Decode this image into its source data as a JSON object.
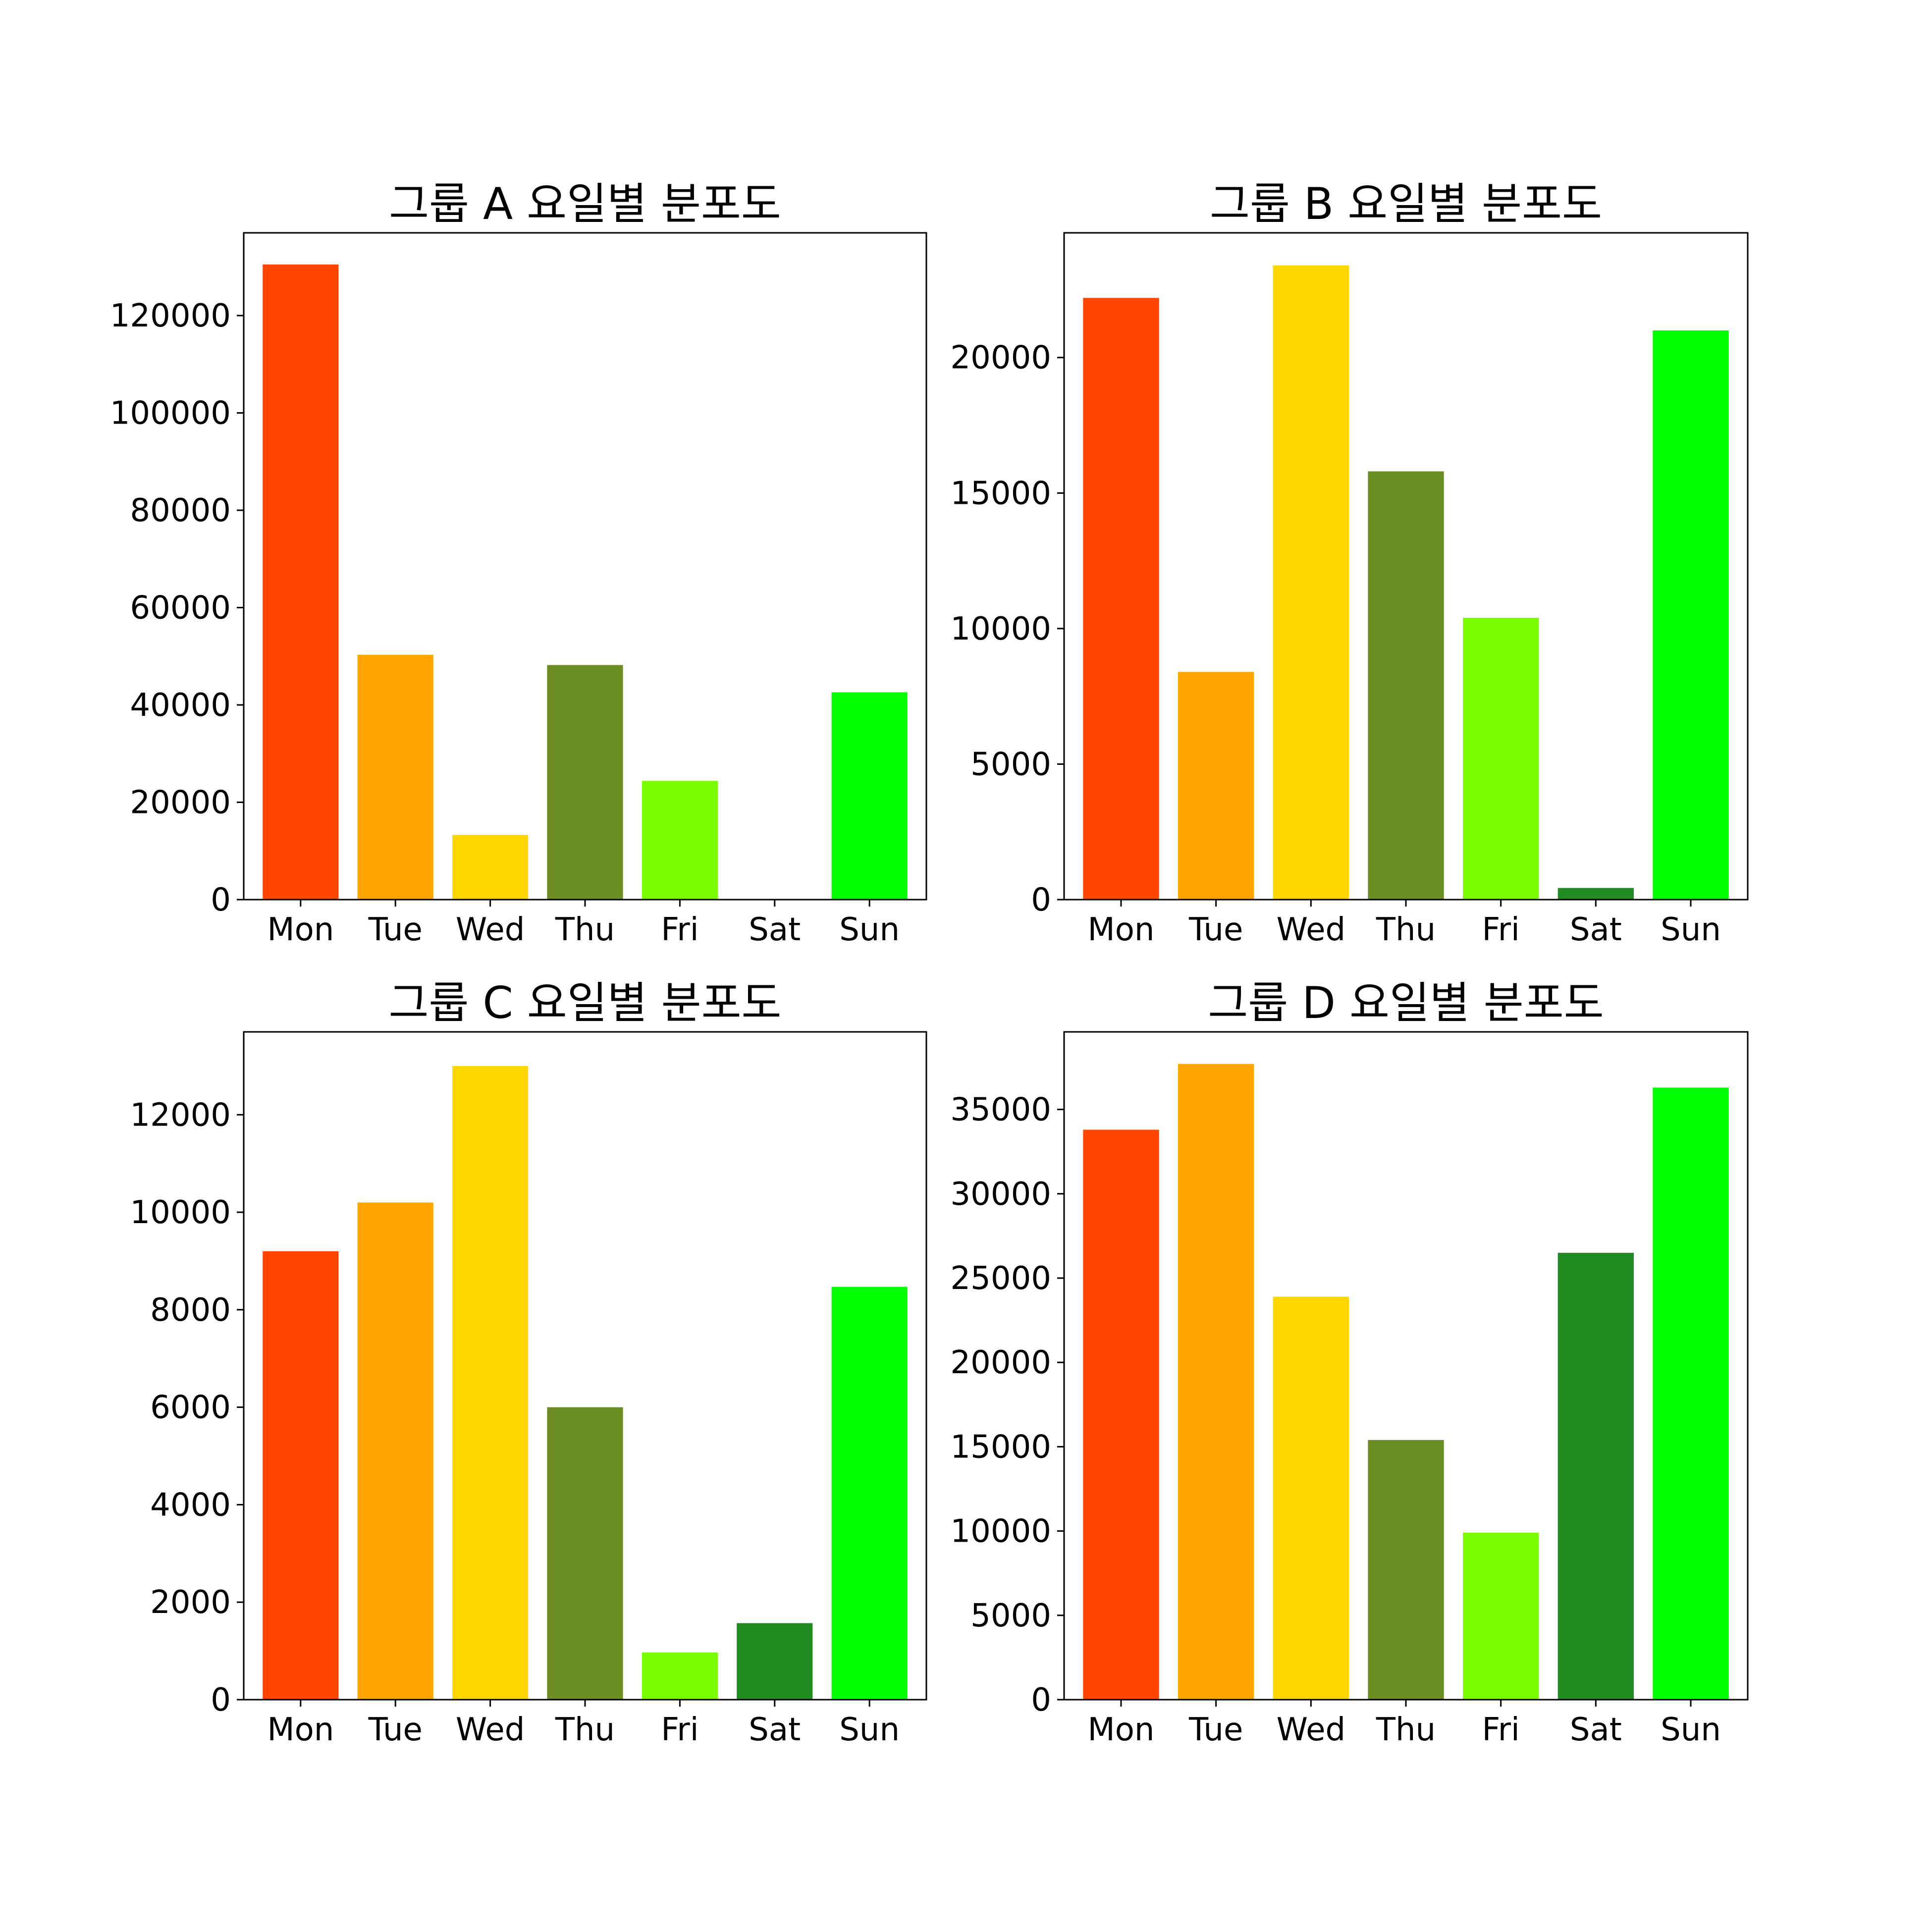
{
  "chart_data": [
    {
      "type": "bar",
      "title": "그룹 A 요일별 분포도",
      "xlabel": "",
      "ylabel": "",
      "categories": [
        "Mon",
        "Tue",
        "Wed",
        "Thu",
        "Fri",
        "Sat",
        "Sun"
      ],
      "values": [
        130500,
        50300,
        13300,
        48200,
        24400,
        0,
        42600
      ],
      "ylim": [
        0,
        137000
      ],
      "yticks": [
        0,
        20000,
        40000,
        60000,
        80000,
        100000,
        120000
      ],
      "colors": [
        "#ff4500",
        "#ffa500",
        "#ffd700",
        "#6b8e23",
        "#7cfc00",
        "#228b22",
        "#00ff00"
      ],
      "grid": false
    },
    {
      "type": "bar",
      "title": "그룹 B 요일별 분포도",
      "xlabel": "",
      "ylabel": "",
      "categories": [
        "Mon",
        "Tue",
        "Wed",
        "Thu",
        "Fri",
        "Sat",
        "Sun"
      ],
      "values": [
        22200,
        8400,
        23400,
        15800,
        10400,
        430,
        21000
      ],
      "ylim": [
        0,
        24600
      ],
      "yticks": [
        0,
        5000,
        10000,
        15000,
        20000
      ],
      "colors": [
        "#ff4500",
        "#ffa500",
        "#ffd700",
        "#6b8e23",
        "#7cfc00",
        "#228b22",
        "#00ff00"
      ],
      "grid": false
    },
    {
      "type": "bar",
      "title": "그룹 C 요일별 분포도",
      "xlabel": "",
      "ylabel": "",
      "categories": [
        "Mon",
        "Tue",
        "Wed",
        "Thu",
        "Fri",
        "Sat",
        "Sun"
      ],
      "values": [
        9200,
        10200,
        13000,
        6000,
        970,
        1570,
        8470
      ],
      "ylim": [
        0,
        13700
      ],
      "yticks": [
        0,
        2000,
        4000,
        6000,
        8000,
        10000,
        12000
      ],
      "colors": [
        "#ff4500",
        "#ffa500",
        "#ffd700",
        "#6b8e23",
        "#7cfc00",
        "#228b22",
        "#00ff00"
      ],
      "grid": false
    },
    {
      "type": "bar",
      "title": "그룹 D 요일별 분포도",
      "xlabel": "",
      "ylabel": "",
      "categories": [
        "Mon",
        "Tue",
        "Wed",
        "Thu",
        "Fri",
        "Sat",
        "Sun"
      ],
      "values": [
        33800,
        37700,
        23900,
        15400,
        9900,
        26500,
        36300
      ],
      "ylim": [
        0,
        39600
      ],
      "yticks": [
        0,
        5000,
        10000,
        15000,
        20000,
        25000,
        30000,
        35000
      ],
      "colors": [
        "#ff4500",
        "#ffa500",
        "#ffd700",
        "#6b8e23",
        "#7cfc00",
        "#228b22",
        "#00ff00"
      ],
      "grid": false
    }
  ]
}
